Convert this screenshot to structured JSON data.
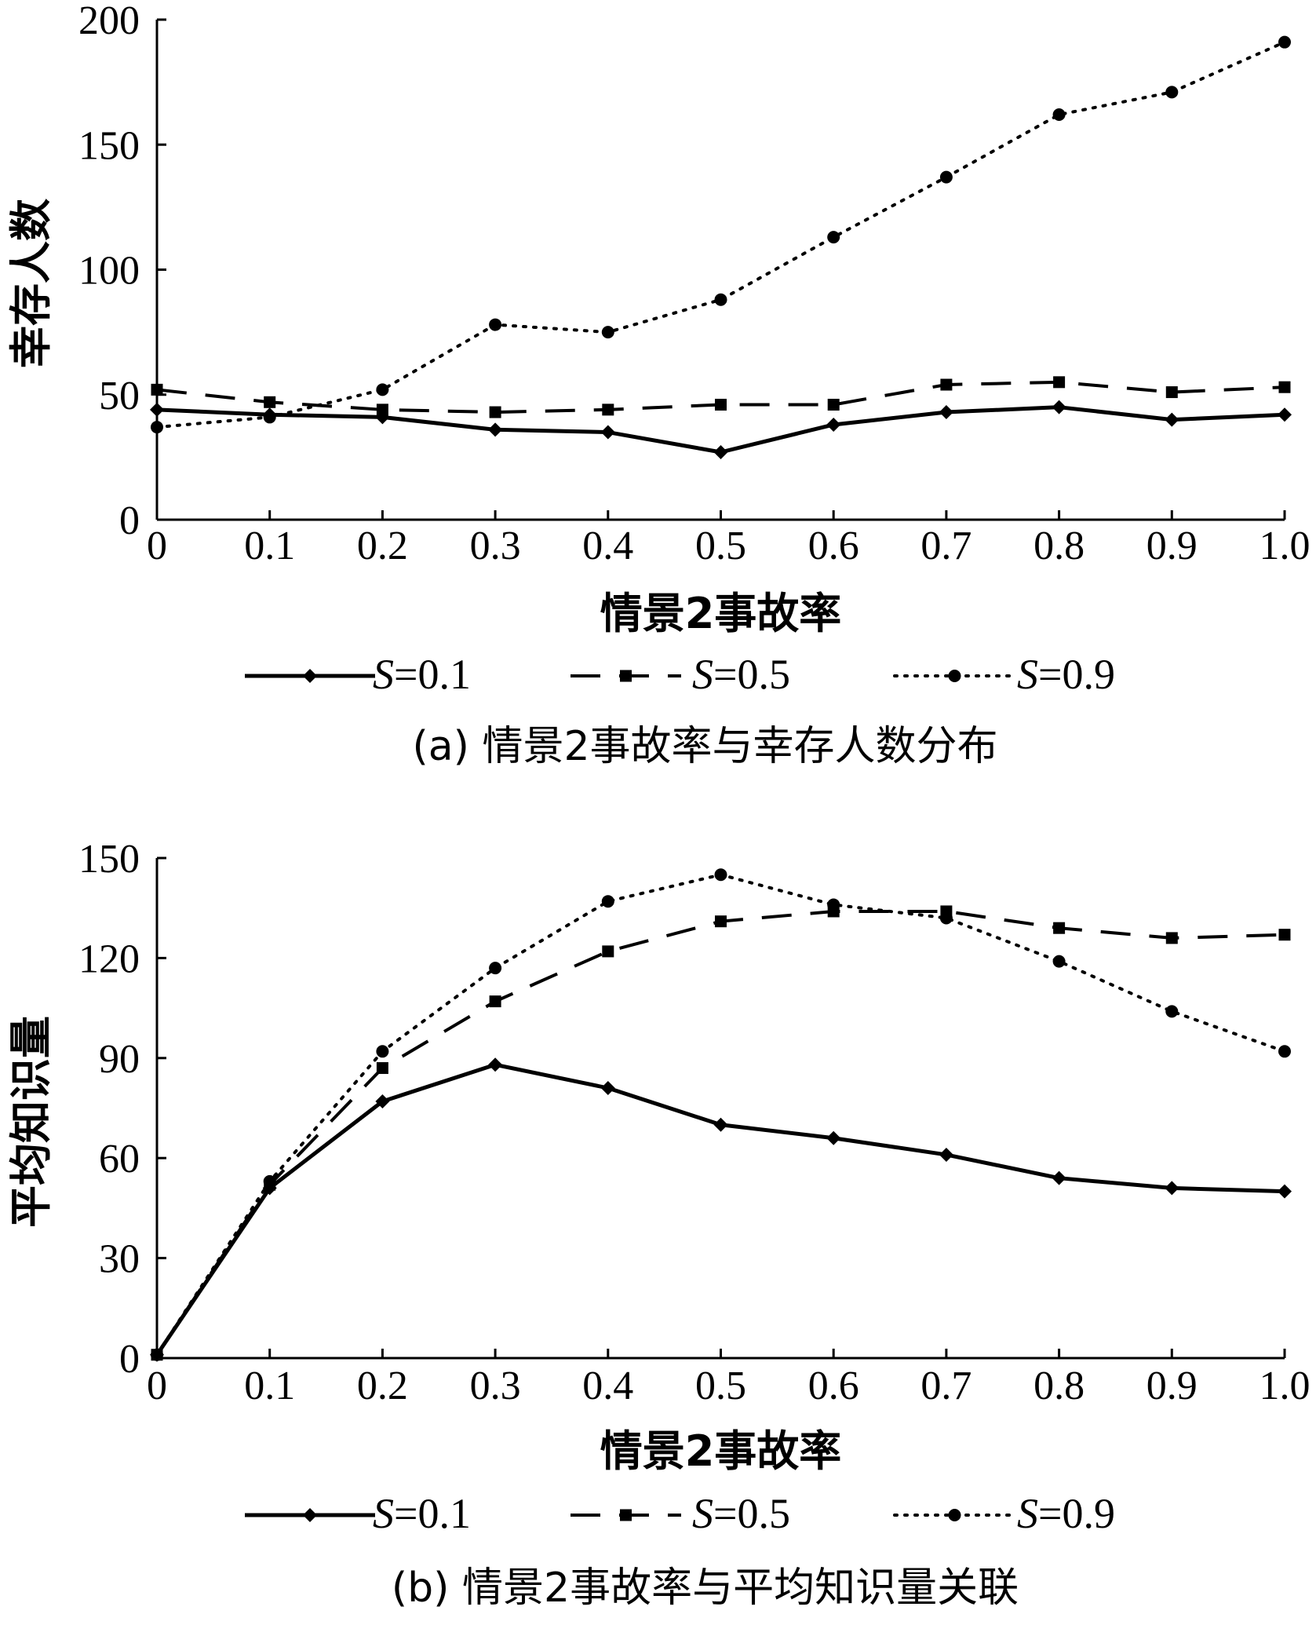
{
  "chart_data": [
    {
      "type": "line",
      "caption": "(a) 情景2事故率与幸存人数分布",
      "xlabel": "情景2事故率",
      "ylabel": "幸存人数",
      "x": [
        0,
        0.1,
        0.2,
        0.3,
        0.4,
        0.5,
        0.6,
        0.7,
        0.8,
        0.9,
        1.0
      ],
      "x_tick_labels": [
        "0",
        "0.1",
        "0.2",
        "0.3",
        "0.4",
        "0.5",
        "0.6",
        "0.7",
        "0.8",
        "0.9",
        "1.0"
      ],
      "y_ticks": [
        0,
        50,
        100,
        150,
        200
      ],
      "ylim": [
        0,
        200
      ],
      "grid": false,
      "legend_position": "bottom",
      "series": [
        {
          "name": "S=0.1",
          "var": "S",
          "eq": "=0.1",
          "style": "solid",
          "marker": "diamond",
          "values": [
            44,
            42,
            41,
            36,
            35,
            27,
            38,
            43,
            45,
            40,
            42
          ]
        },
        {
          "name": "S=0.5",
          "var": "S",
          "eq": "=0.5",
          "style": "dashed",
          "marker": "square",
          "values": [
            52,
            47,
            44,
            43,
            44,
            46,
            46,
            54,
            55,
            51,
            53
          ]
        },
        {
          "name": "S=0.9",
          "var": "S",
          "eq": "=0.9",
          "style": "dotted",
          "marker": "circle",
          "values": [
            37,
            41,
            52,
            78,
            75,
            88,
            113,
            137,
            162,
            171,
            191
          ]
        }
      ]
    },
    {
      "type": "line",
      "caption": "(b) 情景2事故率与平均知识量关联",
      "xlabel": "情景2事故率",
      "ylabel": "平均知识量",
      "x": [
        0,
        0.1,
        0.2,
        0.3,
        0.4,
        0.5,
        0.6,
        0.7,
        0.8,
        0.9,
        1.0
      ],
      "x_tick_labels": [
        "0",
        "0.1",
        "0.2",
        "0.3",
        "0.4",
        "0.5",
        "0.6",
        "0.7",
        "0.8",
        "0.9",
        "1.0"
      ],
      "y_ticks": [
        0,
        30,
        60,
        90,
        120,
        150
      ],
      "ylim": [
        0,
        150
      ],
      "grid": false,
      "legend_position": "bottom",
      "series": [
        {
          "name": "S=0.1",
          "var": "S",
          "eq": "=0.1",
          "style": "solid",
          "marker": "diamond",
          "values": [
            1,
            51,
            77,
            88,
            81,
            70,
            66,
            61,
            54,
            51,
            50
          ]
        },
        {
          "name": "S=0.5",
          "var": "S",
          "eq": "=0.5",
          "style": "dashed",
          "marker": "square",
          "values": [
            1,
            52,
            87,
            107,
            122,
            131,
            134,
            134,
            129,
            126,
            127
          ]
        },
        {
          "name": "S=0.9",
          "var": "S",
          "eq": "=0.9",
          "style": "dotted",
          "marker": "circle",
          "values": [
            1,
            53,
            92,
            117,
            137,
            145,
            136,
            132,
            119,
            104,
            92
          ]
        }
      ]
    }
  ]
}
